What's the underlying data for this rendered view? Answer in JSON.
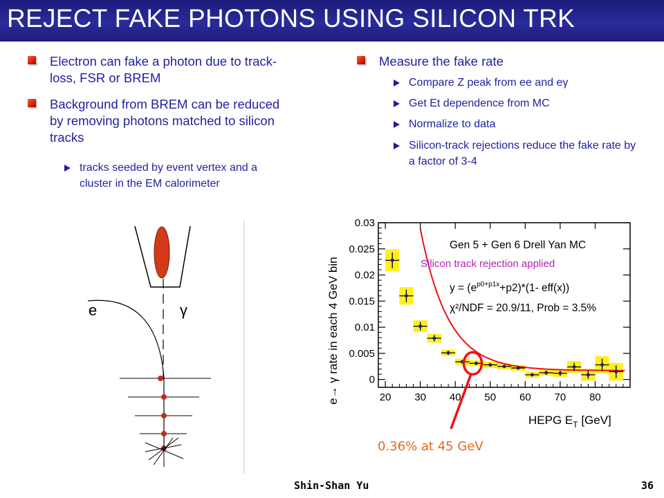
{
  "title": "REJECT FAKE PHOTONS USING SILICON TRK",
  "left_column": {
    "bullets": [
      "Electron can fake a photon due to track-loss, FSR or BREM",
      "Background from BREM can be reduced by removing photons matched to silicon tracks"
    ],
    "sub_bullets": [
      "tracks seeded by event vertex and a cluster in the EM calorimeter"
    ]
  },
  "right_column": {
    "bullet": "Measure the fake rate",
    "sub_bullets": [
      "Compare Z peak from ee and eγ",
      "Get Et dependence from MC",
      "Normalize to data",
      "Silicon-track rejections reduce the fake rate by a factor of 3-4"
    ]
  },
  "sketch": {
    "electron_label": "e",
    "photon_label": "γ"
  },
  "chart_data": {
    "type": "scatter",
    "title": "Gen 5 + Gen 6 Drell Yan MC",
    "subtitle": "Silicon track rejection applied",
    "fit_formula": "y = (e^(p0+p1x)+p2)*(1- eff(x))",
    "fit_formula_parts": {
      "lead": "y = (e",
      "exp": "p0+p1x",
      "tail": "+p2)*(1- eff(x))"
    },
    "chi2_text": "χ²/NDF = 20.9/11, Prob = 3.5%",
    "xlabel": "HEPG E",
    "xlabel_sub": "T",
    "xlabel_unit": " [GeV]",
    "ylabel": "e→ γ rate in each 4 GeV bin",
    "xlim": [
      18,
      90
    ],
    "ylim": [
      -0.0015,
      0.03
    ],
    "x_ticks": [
      20,
      30,
      40,
      50,
      60,
      70,
      80
    ],
    "y_ticks": [
      0,
      0.005,
      0.01,
      0.015,
      0.02,
      0.025,
      0.03
    ],
    "y_tick_labels": [
      "0",
      "0.005",
      "0.01",
      "0.015",
      "0.02",
      "0.025",
      "0.03"
    ],
    "points": [
      {
        "x": 22,
        "y": 0.0228,
        "yerr": 0.0015
      },
      {
        "x": 26,
        "y": 0.016,
        "yerr": 0.0012
      },
      {
        "x": 30,
        "y": 0.0102,
        "yerr": 0.0008
      },
      {
        "x": 34,
        "y": 0.0079,
        "yerr": 0.0006
      },
      {
        "x": 38,
        "y": 0.0051,
        "yerr": 0.0004
      },
      {
        "x": 42,
        "y": 0.0034,
        "yerr": 0.0003
      },
      {
        "x": 46,
        "y": 0.0031,
        "yerr": 0.0003
      },
      {
        "x": 50,
        "y": 0.0028,
        "yerr": 0.0003
      },
      {
        "x": 54,
        "y": 0.0025,
        "yerr": 0.0003
      },
      {
        "x": 58,
        "y": 0.0022,
        "yerr": 0.0003
      },
      {
        "x": 62,
        "y": 0.0009,
        "yerr": 0.0003
      },
      {
        "x": 66,
        "y": 0.0013,
        "yerr": 0.0004
      },
      {
        "x": 70,
        "y": 0.0012,
        "yerr": 0.0005
      },
      {
        "x": 74,
        "y": 0.0024,
        "yerr": 0.0008
      },
      {
        "x": 78,
        "y": 0.0009,
        "yerr": 0.0008
      },
      {
        "x": 82,
        "y": 0.0028,
        "yerr": 0.0012
      },
      {
        "x": 86,
        "y": 0.0015,
        "yerr": 0.0012
      }
    ],
    "fit_curve": {
      "p_exp_a": 0.175,
      "p_exp_b": -0.126,
      "p_const": 0.0017
    },
    "colors": {
      "fit_line": "#ee1111",
      "band": "#ffee22",
      "points": "#1a1aa8",
      "subtitle": "#b322b3"
    },
    "annotation": {
      "text": "0.36% at 45 GeV",
      "x": 45,
      "y": 0.0031,
      "color": "#e8671a"
    }
  },
  "footer": {
    "author": "Shin-Shan Yu",
    "page": "36"
  }
}
